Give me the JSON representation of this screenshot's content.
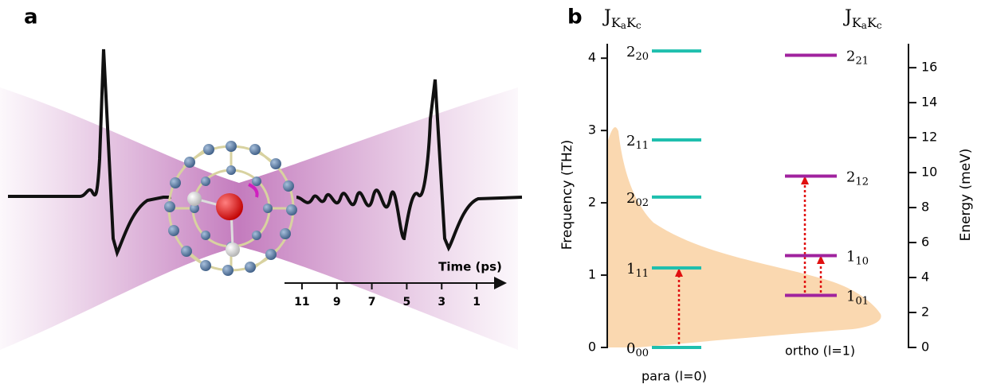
{
  "panel_a": {
    "label": "a",
    "time_axis": {
      "title": "Time (ps)",
      "xlim": [
        12,
        0
      ],
      "ticks": [
        11,
        9,
        7,
        5,
        3,
        1
      ]
    }
  },
  "panel_b": {
    "label": "b",
    "header": [
      "J",
      "K",
      "a",
      "K",
      "c"
    ],
    "y_title": "Frequency (THz)",
    "ylim": [
      0,
      4.2
    ],
    "yticks": [
      0,
      1,
      2,
      3,
      4
    ],
    "y2_title": "Energy (meV)",
    "y2lim": [
      0,
      17.37
    ],
    "y2ticks": [
      0,
      2,
      4,
      6,
      8,
      10,
      12,
      14,
      16
    ],
    "para": {
      "label": "para (l=0)",
      "color": "#1fbfae",
      "levels": [
        {
          "main": "0",
          "sub": "00",
          "value": 0
        },
        {
          "main": "1",
          "sub": "11",
          "value": 1.1
        },
        {
          "main": "2",
          "sub": "02",
          "value": 2.08
        },
        {
          "main": "2",
          "sub": "11",
          "value": 2.87
        },
        {
          "main": "2",
          "sub": "20",
          "value": 4.1
        }
      ]
    },
    "ortho": {
      "label": "ortho (l=1)",
      "color": "#a0229e",
      "levels": [
        {
          "main": "1",
          "sub": "01",
          "value": 0.72
        },
        {
          "main": "1",
          "sub": "10",
          "value": 1.27
        },
        {
          "main": "2",
          "sub": "12",
          "value": 2.37
        },
        {
          "main": "2",
          "sub": "21",
          "value": 4.04
        }
      ]
    }
  }
}
